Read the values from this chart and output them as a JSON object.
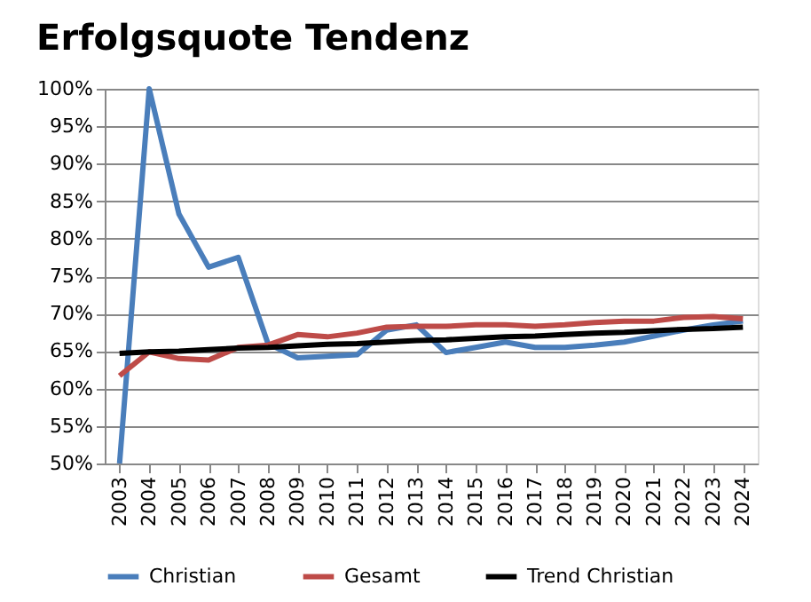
{
  "chart_data": {
    "type": "line",
    "title": "Erfolgsquote Tendenz",
    "categories": [
      "2003",
      "2004",
      "2005",
      "2006",
      "2007",
      "2008",
      "2009",
      "2010",
      "2011",
      "2012",
      "2013",
      "2014",
      "2015",
      "2016",
      "2017",
      "2018",
      "2019",
      "2020",
      "2021",
      "2022",
      "2023",
      "2024"
    ],
    "series": [
      {
        "name": "Christian",
        "color": "#4a7ebb",
        "values": [
          50,
          100,
          83.3,
          76.2,
          77.5,
          66.0,
          64.1,
          64.3,
          64.5,
          67.8,
          68.5,
          64.8,
          65.5,
          66.2,
          65.5,
          65.5,
          65.8,
          66.2,
          67.0,
          67.8,
          68.5,
          69.0
        ]
      },
      {
        "name": "Gesamt",
        "color": "#be4b48",
        "values": [
          61.7,
          64.9,
          64.0,
          63.8,
          65.5,
          65.8,
          67.2,
          66.9,
          67.4,
          68.2,
          68.3,
          68.3,
          68.5,
          68.5,
          68.3,
          68.5,
          68.8,
          69.0,
          69.0,
          69.5,
          69.6,
          69.3
        ]
      },
      {
        "name": "Trend Christian",
        "color": "#000000",
        "type": "line",
        "values": [
          64.7,
          64.9,
          65.0,
          65.2,
          65.4,
          65.5,
          65.7,
          65.9,
          66.0,
          66.2,
          66.4,
          66.5,
          66.7,
          66.9,
          67.0,
          67.2,
          67.4,
          67.5,
          67.7,
          67.9,
          68.0,
          68.2
        ]
      }
    ],
    "ylim": [
      50,
      100
    ],
    "yticks": [
      {
        "value": 50,
        "label": "50%"
      },
      {
        "value": 55,
        "label": "55%"
      },
      {
        "value": 60,
        "label": "60%"
      },
      {
        "value": 65,
        "label": "65%"
      },
      {
        "value": 70,
        "label": "70%"
      },
      {
        "value": 75,
        "label": "75%"
      },
      {
        "value": 80,
        "label": "80%"
      },
      {
        "value": 85,
        "label": "85%"
      },
      {
        "value": 90,
        "label": "90%"
      },
      {
        "value": 95,
        "label": "95%"
      },
      {
        "value": 100,
        "label": "100%"
      }
    ],
    "grid": "y",
    "legend": "bottom",
    "marker": "none",
    "line_style": "solid"
  }
}
